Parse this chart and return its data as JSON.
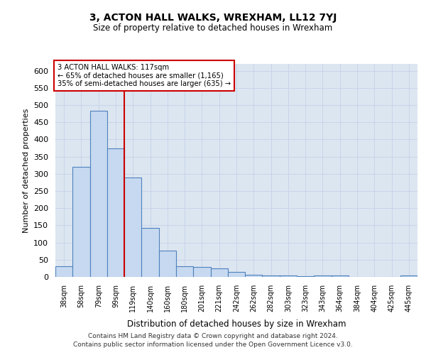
{
  "title": "3, ACTON HALL WALKS, WREXHAM, LL12 7YJ",
  "subtitle": "Size of property relative to detached houses in Wrexham",
  "xlabel": "Distribution of detached houses by size in Wrexham",
  "ylabel": "Number of detached properties",
  "categories": [
    "38sqm",
    "58sqm",
    "79sqm",
    "99sqm",
    "119sqm",
    "140sqm",
    "160sqm",
    "180sqm",
    "201sqm",
    "221sqm",
    "242sqm",
    "262sqm",
    "282sqm",
    "303sqm",
    "323sqm",
    "343sqm",
    "364sqm",
    "384sqm",
    "404sqm",
    "425sqm",
    "445sqm"
  ],
  "values": [
    30,
    320,
    483,
    375,
    290,
    143,
    76,
    32,
    29,
    25,
    15,
    7,
    5,
    4,
    3,
    4,
    4,
    0,
    0,
    0,
    5
  ],
  "bar_color": "#c6d9f0",
  "bar_edge_color": "#4f81bd",
  "vline_color": "#cc0000",
  "annotation_box_color": "#cc0000",
  "grid_color": "#c8d4e8",
  "background_color": "#dce6f1",
  "ylim": [
    0,
    620
  ],
  "yticks": [
    0,
    50,
    100,
    150,
    200,
    250,
    300,
    350,
    400,
    450,
    500,
    550,
    600
  ],
  "annotation_line1": "3 ACTON HALL WALKS: 117sqm",
  "annotation_line2": "← 65% of detached houses are smaller (1,165)",
  "annotation_line3": "35% of semi-detached houses are larger (635) →",
  "footer1": "Contains HM Land Registry data © Crown copyright and database right 2024.",
  "footer2": "Contains public sector information licensed under the Open Government Licence v3.0."
}
